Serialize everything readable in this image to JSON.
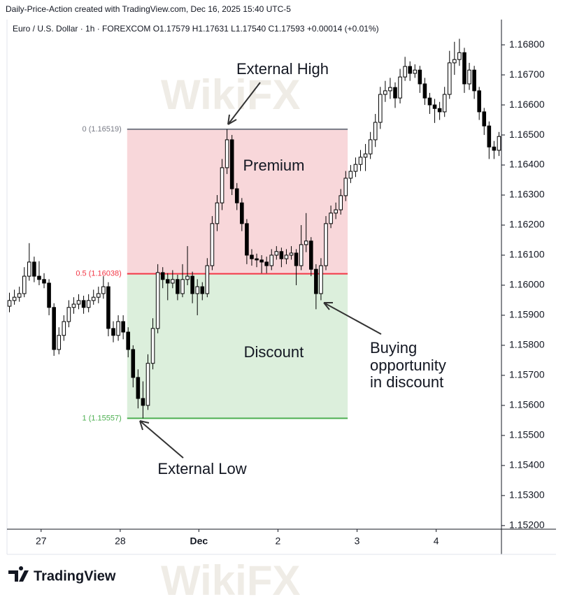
{
  "chart_data": {
    "type": "candlestick",
    "header": "Daily-Price-Action created with TradingView.com, Dec 16, 2025 15:40 UTC-5",
    "symbol_line": "Euro / U.S. Dollar · 1h · FOREXCOM  O1.17579  H1.17631  L1.17540  C1.17593  +0.00014 (+0.01%)",
    "brand": "TradingView",
    "watermark": "WikiFX",
    "up_color": "#ffffff",
    "down_color": "#000000",
    "outline_color": "#000000",
    "ylim": [
      1.15188,
      1.16884
    ],
    "yticks": [
      {
        "value": 1.152,
        "label": "1.15200"
      },
      {
        "value": 1.153,
        "label": "1.15300"
      },
      {
        "value": 1.154,
        "label": "1.15400"
      },
      {
        "value": 1.155,
        "label": "1.15500"
      },
      {
        "value": 1.156,
        "label": "1.15600"
      },
      {
        "value": 1.157,
        "label": "1.15700"
      },
      {
        "value": 1.158,
        "label": "1.15800"
      },
      {
        "value": 1.159,
        "label": "1.15900"
      },
      {
        "value": 1.16,
        "label": "1.16000"
      },
      {
        "value": 1.161,
        "label": "1.16100"
      },
      {
        "value": 1.162,
        "label": "1.16200"
      },
      {
        "value": 1.163,
        "label": "1.16300"
      },
      {
        "value": 1.164,
        "label": "1.16400"
      },
      {
        "value": 1.165,
        "label": "1.16500"
      },
      {
        "value": 1.166,
        "label": "1.16600"
      },
      {
        "value": 1.167,
        "label": "1.16700"
      },
      {
        "value": 1.168,
        "label": "1.16800"
      }
    ],
    "xlim": [
      -0.5,
      99.5
    ],
    "xticks": [
      {
        "value": 6.4,
        "label": "27"
      },
      {
        "value": 22.4,
        "label": "28"
      },
      {
        "value": 38.3,
        "label": "Dec"
      },
      {
        "value": 54.3,
        "label": "2"
      },
      {
        "value": 70.3,
        "label": "3"
      },
      {
        "value": 86.3,
        "label": "4"
      }
    ],
    "ohlc": [
      [
        1.1593,
        1.15975,
        1.1591,
        1.15949
      ],
      [
        1.15949,
        1.15985,
        1.15935,
        1.1596
      ],
      [
        1.1596,
        1.15995,
        1.15945,
        1.15972
      ],
      [
        1.15972,
        1.1606,
        1.1596,
        1.1603
      ],
      [
        1.1603,
        1.1614,
        1.16015,
        1.16077
      ],
      [
        1.16077,
        1.16095,
        1.1601,
        1.1603
      ],
      [
        1.1603,
        1.1608,
        1.16,
        1.16019
      ],
      [
        1.16019,
        1.1604,
        1.1599,
        1.16007
      ],
      [
        1.16007,
        1.1602,
        1.159,
        1.15926
      ],
      [
        1.15926,
        1.1594,
        1.15765,
        1.15786
      ],
      [
        1.15786,
        1.1586,
        1.1577,
        1.15833
      ],
      [
        1.15833,
        1.159,
        1.15815,
        1.15879
      ],
      [
        1.15879,
        1.1595,
        1.1586,
        1.15926
      ],
      [
        1.15926,
        1.1596,
        1.15905,
        1.15937
      ],
      [
        1.15937,
        1.1597,
        1.1592,
        1.15949
      ],
      [
        1.15949,
        1.15965,
        1.15905,
        1.15926
      ],
      [
        1.15926,
        1.1597,
        1.1591,
        1.15949
      ],
      [
        1.15949,
        1.15985,
        1.15935,
        1.1596
      ],
      [
        1.1596,
        1.15995,
        1.1594,
        1.15972
      ],
      [
        1.15972,
        1.1603,
        1.15955,
        1.15995
      ],
      [
        1.15995,
        1.1601,
        1.1583,
        1.15856
      ],
      [
        1.15856,
        1.1588,
        1.1581,
        1.15833
      ],
      [
        1.15833,
        1.159,
        1.15815,
        1.15879
      ],
      [
        1.15879,
        1.159,
        1.1582,
        1.15844
      ],
      [
        1.15844,
        1.1586,
        1.1576,
        1.15786
      ],
      [
        1.15786,
        1.158,
        1.1566,
        1.15693
      ],
      [
        1.15693,
        1.1572,
        1.1559,
        1.15623
      ],
      [
        1.15623,
        1.1568,
        1.15557,
        1.156
      ],
      [
        1.156,
        1.1577,
        1.15585,
        1.1574
      ],
      [
        1.1574,
        1.1589,
        1.1572,
        1.15856
      ],
      [
        1.15856,
        1.1607,
        1.1584,
        1.16042
      ],
      [
        1.16042,
        1.1606,
        1.1599,
        1.16019
      ],
      [
        1.16019,
        1.1604,
        1.1595,
        1.16007
      ],
      [
        1.16007,
        1.1605,
        1.1599,
        1.16019
      ],
      [
        1.16019,
        1.16035,
        1.1595,
        1.15972
      ],
      [
        1.15972,
        1.1607,
        1.1596,
        1.16019
      ],
      [
        1.16019,
        1.1613,
        1.16,
        1.1603
      ],
      [
        1.1603,
        1.16045,
        1.1594,
        1.15972
      ],
      [
        1.15972,
        1.1602,
        1.159,
        1.15995
      ],
      [
        1.15995,
        1.1601,
        1.1595,
        1.15972
      ],
      [
        1.15972,
        1.1609,
        1.1596,
        1.16065
      ],
      [
        1.16065,
        1.1623,
        1.1605,
        1.16205
      ],
      [
        1.16205,
        1.163,
        1.1618,
        1.16274
      ],
      [
        1.16274,
        1.1642,
        1.1625,
        1.16391
      ],
      [
        1.16391,
        1.16519,
        1.1637,
        1.16484
      ],
      [
        1.16484,
        1.165,
        1.163,
        1.16321
      ],
      [
        1.16321,
        1.1634,
        1.1625,
        1.16274
      ],
      [
        1.16274,
        1.1629,
        1.1618,
        1.16205
      ],
      [
        1.16205,
        1.1622,
        1.1607,
        1.161
      ],
      [
        1.161,
        1.1612,
        1.16065,
        1.16088
      ],
      [
        1.16088,
        1.16105,
        1.1606,
        1.16084
      ],
      [
        1.16084,
        1.161,
        1.1604,
        1.16077
      ],
      [
        1.16077,
        1.16095,
        1.1604,
        1.16065
      ],
      [
        1.16065,
        1.1612,
        1.1605,
        1.161
      ],
      [
        1.161,
        1.1613,
        1.16085,
        1.16112
      ],
      [
        1.16112,
        1.16125,
        1.1606,
        1.16088
      ],
      [
        1.16088,
        1.1612,
        1.1607,
        1.161
      ],
      [
        1.161,
        1.1613,
        1.16085,
        1.16107
      ],
      [
        1.16107,
        1.1612,
        1.16,
        1.16065
      ],
      [
        1.16065,
        1.162,
        1.1605,
        1.16135
      ],
      [
        1.16135,
        1.1624,
        1.1611,
        1.16147
      ],
      [
        1.16147,
        1.1616,
        1.1603,
        1.16053
      ],
      [
        1.16053,
        1.1607,
        1.1592,
        1.15972
      ],
      [
        1.15972,
        1.1609,
        1.1595,
        1.16065
      ],
      [
        1.16065,
        1.1623,
        1.1605,
        1.16205
      ],
      [
        1.16205,
        1.16265,
        1.1619,
        1.1624
      ],
      [
        1.1624,
        1.16275,
        1.1622,
        1.16251
      ],
      [
        1.16251,
        1.1632,
        1.16235,
        1.16298
      ],
      [
        1.16298,
        1.1638,
        1.1628,
        1.16356
      ],
      [
        1.16356,
        1.164,
        1.1634,
        1.16379
      ],
      [
        1.16379,
        1.16425,
        1.1636,
        1.16402
      ],
      [
        1.16402,
        1.1645,
        1.1638,
        1.16426
      ],
      [
        1.16426,
        1.1647,
        1.1638,
        1.16437
      ],
      [
        1.16437,
        1.1651,
        1.1642,
        1.16484
      ],
      [
        1.16484,
        1.1657,
        1.1646,
        1.16542
      ],
      [
        1.16542,
        1.1666,
        1.1652,
        1.16635
      ],
      [
        1.16635,
        1.1668,
        1.1661,
        1.16647
      ],
      [
        1.16647,
        1.1669,
        1.1662,
        1.16658
      ],
      [
        1.16658,
        1.16675,
        1.1659,
        1.16623
      ],
      [
        1.16623,
        1.1672,
        1.16605,
        1.16693
      ],
      [
        1.16693,
        1.1676,
        1.1668,
        1.16728
      ],
      [
        1.16728,
        1.16745,
        1.1668,
        1.16705
      ],
      [
        1.16705,
        1.16735,
        1.1669,
        1.16716
      ],
      [
        1.16716,
        1.1673,
        1.1664,
        1.1667
      ],
      [
        1.1667,
        1.1669,
        1.166,
        1.16623
      ],
      [
        1.16623,
        1.1664,
        1.1657,
        1.166
      ],
      [
        1.166,
        1.1662,
        1.1654,
        1.16588
      ],
      [
        1.16588,
        1.1661,
        1.1655,
        1.16577
      ],
      [
        1.16577,
        1.1666,
        1.1656,
        1.16635
      ],
      [
        1.16635,
        1.1678,
        1.1662,
        1.1674
      ],
      [
        1.1674,
        1.1681,
        1.167,
        1.16751
      ],
      [
        1.16751,
        1.1682,
        1.1673,
        1.16774
      ],
      [
        1.16774,
        1.1679,
        1.1664,
        1.1667
      ],
      [
        1.1667,
        1.1674,
        1.1665,
        1.16716
      ],
      [
        1.16716,
        1.1673,
        1.1662,
        1.16647
      ],
      [
        1.16647,
        1.1666,
        1.1655,
        1.16577
      ],
      [
        1.16577,
        1.1659,
        1.165,
        1.1653
      ],
      [
        1.1653,
        1.16545,
        1.1642,
        1.1646
      ],
      [
        1.1646,
        1.1648,
        1.1642,
        1.16449
      ],
      [
        1.16449,
        1.1651,
        1.1643,
        1.16495
      ]
    ],
    "fib": {
      "xrange": [
        23.8,
        68.4
      ],
      "levels": [
        {
          "label": "0 (1.16519)",
          "value": 1.16519,
          "color": "#787b86"
        },
        {
          "label": "0.5 (1.16038)",
          "value": 1.16038,
          "color": "#f23645"
        },
        {
          "label": "1 (1.15557)",
          "value": 1.15557,
          "color": "#4caf50"
        }
      ],
      "zones": [
        {
          "name": "Premium",
          "color": "#f8d7da"
        },
        {
          "name": "Discount",
          "color": "#dcefdc"
        }
      ]
    },
    "annotations": {
      "external_high": "External High",
      "external_low": "External Low",
      "buying": [
        "Buying",
        "opportunity",
        "in discount"
      ]
    }
  }
}
